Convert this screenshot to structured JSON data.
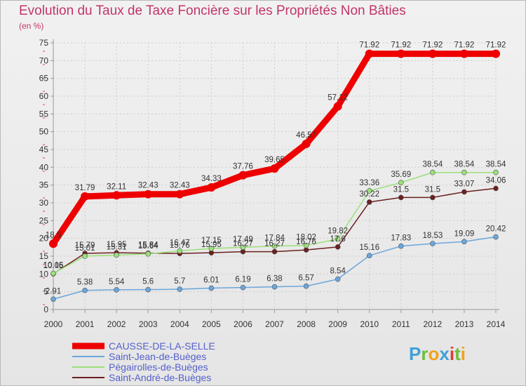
{
  "chart_data": {
    "type": "line",
    "title": "Evolution du Taux de Taxe Foncière sur les Propriétés Non Bâties",
    "subtitle": "(en %)",
    "x": [
      "2000",
      "2001",
      "2002",
      "2003",
      "2004",
      "2005",
      "2006",
      "2007",
      "2008",
      "2009",
      "2010",
      "2011",
      "2012",
      "2013",
      "2014"
    ],
    "ylim": [
      0,
      75
    ],
    "yticks": [
      "0",
      "5",
      "10",
      "15",
      "20",
      "25",
      "30",
      "35",
      "40",
      "45",
      "50",
      "55",
      "60",
      "65",
      "70",
      "75"
    ],
    "grid": true,
    "legend_position": "bottom-left",
    "series": [
      {
        "name": "CAUSSE-DE-LA-SELLE",
        "color": "#ee0000",
        "values": [
          18.5,
          31.79,
          32.11,
          32.43,
          32.43,
          34.33,
          37.76,
          39.65,
          46.57,
          57.12,
          71.92,
          71.92,
          71.92,
          71.92,
          71.92
        ],
        "labels": [
          "18.5",
          "31.79",
          "32.11",
          "32.43",
          "32.43",
          "34.33",
          "37.76",
          "39.65",
          "46.57",
          "57.12",
          "71.92",
          "71.92",
          "71.92",
          "71.92",
          "71.92"
        ]
      },
      {
        "name": "Saint-Jean-de-Buèges",
        "color": "#6aa6db",
        "values": [
          2.91,
          5.38,
          5.54,
          5.6,
          5.7,
          6.01,
          6.19,
          6.38,
          6.57,
          8.54,
          15.16,
          17.83,
          18.53,
          19.09,
          20.42
        ],
        "labels": [
          "2.91",
          "5.38",
          "5.54",
          "5.6",
          "5.7",
          "6.01",
          "6.19",
          "6.38",
          "6.57",
          "8.54",
          "15.16",
          "17.83",
          "18.53",
          "19.09",
          "20.42"
        ]
      },
      {
        "name": "Pégairolles-de-Buèges",
        "color": "#9be07a",
        "values": [
          10.16,
          15.01,
          15.31,
          15.64,
          16.47,
          17.15,
          17.49,
          17.84,
          18.02,
          19.82,
          33.36,
          35.69,
          38.54,
          38.54,
          38.54
        ],
        "labels": [
          "10.16",
          "15.01",
          "15.31",
          "15.64",
          "16.47",
          "17.15",
          "17.49",
          "17.84",
          "18.02",
          "19.82",
          "33.36",
          "35.69",
          "38.54",
          "38.54",
          "38.54"
        ]
      },
      {
        "name": "Saint-André-de-Buèges",
        "color": "#6b1f1f",
        "values": [
          10.05,
          15.79,
          15.95,
          15.84,
          15.76,
          15.95,
          16.27,
          16.27,
          16.76,
          17.6,
          30.22,
          31.5,
          31.5,
          33.07,
          34.06
        ],
        "labels": [
          "10.05",
          "15.79",
          "15.95",
          "15.84",
          "15.76",
          "15.95",
          "16.27",
          "16.27",
          "16.76",
          "17.6",
          "30.22",
          "31.5",
          "31.5",
          "33.07",
          "34.06"
        ]
      }
    ]
  },
  "logo": {
    "letters": [
      "P",
      "r",
      "o",
      "x",
      "i",
      "t",
      "i"
    ],
    "colors": [
      "#3fa0d8",
      "#6abf3a",
      "#f2a21b",
      "#3fa0d8",
      "#e23a3a",
      "#6abf3a",
      "#f2a21b"
    ]
  }
}
